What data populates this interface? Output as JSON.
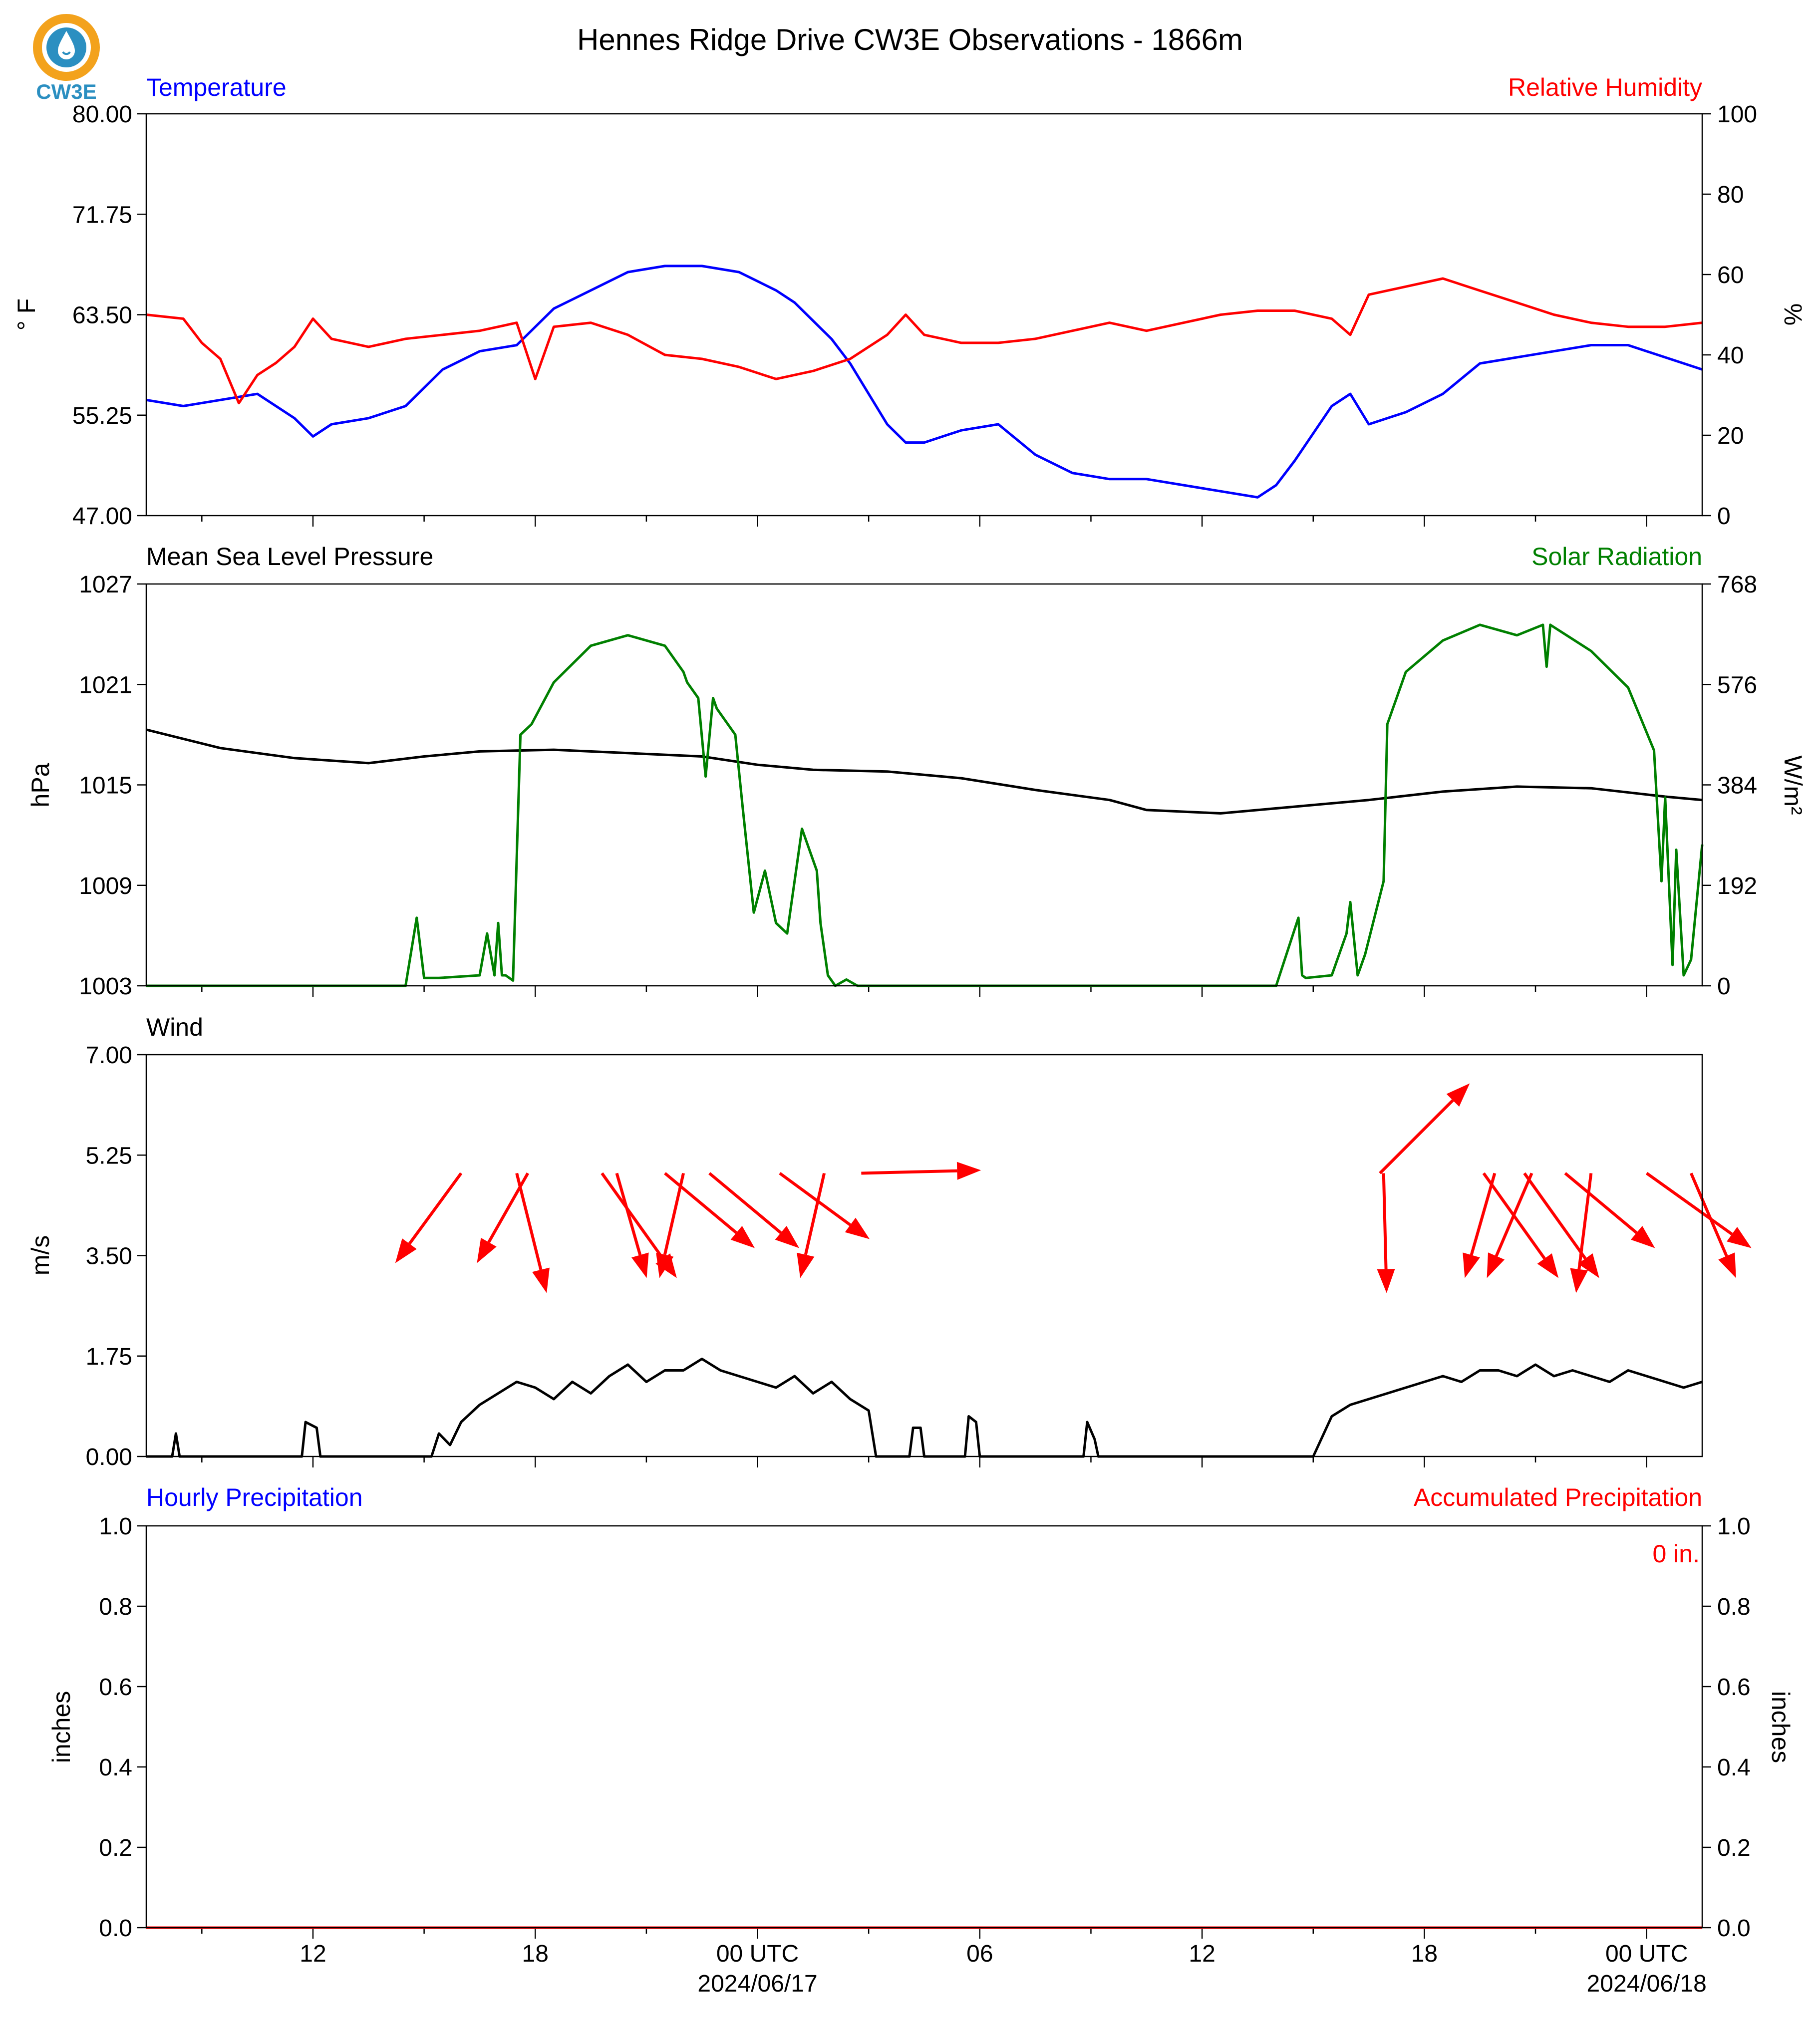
{
  "title": "Hennes Ridge Drive CW3E Observations - 1866m",
  "logo": {
    "text": "CW3E",
    "icon": "water-drop-logo-icon",
    "colors": [
      "#f3a21c",
      "#2b8fc1"
    ]
  },
  "colors": {
    "temperature": "#0000ff",
    "humidity": "#ff0000",
    "pressure": "#000000",
    "solar": "#008000",
    "wind_speed": "#000000",
    "wind_arrow": "#ff0000",
    "hourly_precip": "#0000ff",
    "accum_precip": "#ff0000"
  },
  "x_axis": {
    "time_range_hours": [
      -16.5,
      25.5
    ],
    "major_ticks": [
      -12,
      -6,
      0,
      6,
      12,
      18,
      24
    ],
    "tick_labels": [
      "12",
      "18",
      "00 UTC",
      "06",
      "12",
      "18",
      "00 UTC"
    ],
    "date_labels": [
      "2024/06/17",
      "2024/06/18"
    ],
    "date_label_hours": [
      0,
      24
    ]
  },
  "chart_data": [
    {
      "type": "line",
      "panel": "temperature_humidity",
      "title_left": "Temperature",
      "title_right": "Relative Humidity",
      "ylabel": "° F",
      "ylabel_right": "%",
      "ylim": [
        47.0,
        80.0
      ],
      "ylim_right": [
        0,
        100
      ],
      "yticks": [
        "80.00",
        "71.75",
        "63.50",
        "55.25",
        "47.00"
      ],
      "yticks_right": [
        "100",
        "80",
        "60",
        "40",
        "20",
        "0"
      ],
      "series": [
        {
          "name": "Temperature",
          "axis": "left",
          "x": [
            -16.5,
            -15.5,
            -14.5,
            -13.5,
            -12.5,
            -12,
            -11.5,
            -10.5,
            -9.5,
            -8.5,
            -7.5,
            -6.5,
            -5.5,
            -4.5,
            -3.5,
            -2.5,
            -1.5,
            -0.5,
            0.5,
            1,
            1.5,
            2,
            2.5,
            3,
            3.5,
            4,
            4.5,
            5.5,
            6.5,
            7.5,
            8.5,
            9.5,
            10.5,
            11.5,
            12.5,
            13.5,
            14,
            14.5,
            15.5,
            16,
            16.5,
            17.5,
            18.5,
            19.5,
            20.5,
            21.5,
            22.5,
            23.5,
            24.5,
            25.5
          ],
          "y": [
            56.5,
            56.0,
            56.5,
            57.0,
            55.0,
            53.5,
            54.5,
            55.0,
            56.0,
            59.0,
            60.5,
            61.0,
            64.0,
            65.5,
            67.0,
            67.5,
            67.5,
            67.0,
            65.5,
            64.5,
            63.0,
            61.5,
            59.5,
            57.0,
            54.5,
            53.0,
            53.0,
            54.0,
            54.5,
            52.0,
            50.5,
            50.0,
            50.0,
            49.5,
            49.0,
            48.5,
            49.5,
            51.5,
            56.0,
            57.0,
            54.5,
            55.5,
            57.0,
            59.5,
            60.0,
            60.5,
            61.0,
            61.0,
            60.0,
            59.0
          ]
        },
        {
          "name": "Relative Humidity",
          "axis": "right",
          "x": [
            -16.5,
            -15.5,
            -15,
            -14.5,
            -14,
            -13.5,
            -13,
            -12.5,
            -12,
            -11.5,
            -10.5,
            -9.5,
            -8.5,
            -7.5,
            -6.5,
            -6,
            -5.5,
            -4.5,
            -3.5,
            -2.5,
            -1.5,
            -0.5,
            0.5,
            1.5,
            2.5,
            3.5,
            4,
            4.5,
            5.5,
            6.5,
            7.5,
            8.5,
            9.5,
            10.5,
            11.5,
            12.5,
            13.5,
            14.5,
            15.5,
            16,
            16.5,
            17.5,
            18.5,
            19.5,
            20.5,
            21.5,
            22.5,
            23.5,
            24.5,
            25.5
          ],
          "y": [
            50,
            49,
            43,
            39,
            28,
            35,
            38,
            42,
            49,
            44,
            42,
            44,
            45,
            46,
            48,
            34,
            47,
            48,
            45,
            40,
            39,
            37,
            34,
            36,
            39,
            45,
            50,
            45,
            43,
            43,
            44,
            46,
            48,
            46,
            48,
            50,
            51,
            51,
            49,
            45,
            55,
            57,
            59,
            56,
            53,
            50,
            48,
            47,
            47,
            48
          ]
        }
      ]
    },
    {
      "type": "line",
      "panel": "pressure_solar",
      "title_left": "Mean Sea Level Pressure",
      "title_right": "Solar Radiation",
      "ylabel": "hPa",
      "ylabel_right": "W/m²",
      "ylim": [
        1003,
        1027
      ],
      "ylim_right": [
        0,
        768
      ],
      "yticks": [
        "1027",
        "1021",
        "1015",
        "1009",
        "1003"
      ],
      "yticks_right": [
        "768",
        "576",
        "384",
        "192",
        "0"
      ],
      "series": [
        {
          "name": "Mean Sea Level Pressure",
          "axis": "left",
          "x": [
            -16.5,
            -14.5,
            -12.5,
            -10.5,
            -9,
            -7.5,
            -5.5,
            -3.5,
            -1.5,
            0,
            1.5,
            3.5,
            5.5,
            7.5,
            9.5,
            10.5,
            12.5,
            14.5,
            16.5,
            18.5,
            20.5,
            22.5,
            24.5,
            25.5
          ],
          "y": [
            1018.3,
            1017.2,
            1016.6,
            1016.3,
            1016.7,
            1017.0,
            1017.1,
            1016.9,
            1016.7,
            1016.2,
            1015.9,
            1015.8,
            1015.4,
            1014.7,
            1014.1,
            1013.5,
            1013.3,
            1013.7,
            1014.1,
            1014.6,
            1014.9,
            1014.8,
            1014.3,
            1014.1
          ]
        },
        {
          "name": "Solar Radiation",
          "axis": "right",
          "x": [
            -16.5,
            -11,
            -9.5,
            -9.2,
            -9,
            -8.6,
            -7.5,
            -7.3,
            -7.1,
            -7.0,
            -6.9,
            -6.8,
            -6.6,
            -6.4,
            -6.1,
            -5.5,
            -4.5,
            -3.5,
            -2.5,
            -2,
            -1.9,
            -1.6,
            -1.4,
            -1.2,
            -1.1,
            -0.6,
            -0.4,
            -0.1,
            0.2,
            0.5,
            0.8,
            1.2,
            1.6,
            1.7,
            1.9,
            2.1,
            2.4,
            2.7,
            3.5,
            3.7,
            14,
            14.6,
            14.7,
            14.8,
            15.5,
            15.9,
            16.0,
            16.2,
            16.4,
            16.9,
            17,
            17.5,
            18.5,
            19.5,
            20.5,
            21.2,
            21.3,
            21.4,
            22.5,
            23.5,
            24.2,
            24.4,
            24.5,
            24.7,
            24.8,
            25.0,
            25.2,
            25.5
          ],
          "y": [
            0,
            0,
            0,
            130,
            15,
            15,
            20,
            100,
            20,
            120,
            20,
            20,
            10,
            480,
            500,
            580,
            650,
            670,
            650,
            600,
            580,
            550,
            400,
            550,
            530,
            480,
            340,
            140,
            220,
            120,
            100,
            300,
            220,
            120,
            20,
            0,
            12,
            0,
            0,
            0,
            0,
            130,
            20,
            15,
            20,
            100,
            160,
            20,
            60,
            200,
            500,
            600,
            660,
            690,
            670,
            690,
            610,
            690,
            640,
            570,
            450,
            200,
            360,
            40,
            260,
            20,
            50,
            270
          ]
        }
      ]
    },
    {
      "type": "line",
      "panel": "wind",
      "title_left": "Wind",
      "ylabel": "m/s",
      "ylim": [
        0.0,
        7.0
      ],
      "yticks": [
        "7.00",
        "5.25",
        "3.50",
        "1.75",
        "0.00"
      ],
      "series": [
        {
          "name": "Wind",
          "axis": "left",
          "x": [
            -16.5,
            -15.8,
            -15.7,
            -15.6,
            -12.3,
            -12.2,
            -11.9,
            -11.8,
            -8.8,
            -8.6,
            -8.3,
            -8,
            -7.5,
            -7,
            -6.5,
            -6,
            -5.5,
            -5,
            -4.5,
            -4,
            -3.5,
            -3,
            -2.5,
            -2,
            -1.5,
            -1,
            -0.5,
            0,
            0.5,
            1,
            1.5,
            2,
            2.5,
            3,
            3.2,
            4.1,
            4.2,
            4.4,
            4.5,
            5.6,
            5.7,
            5.9,
            6,
            8.8,
            8.9,
            9.1,
            9.2,
            15,
            15.5,
            16,
            16.5,
            17,
            17.5,
            18,
            18.5,
            19,
            19.5,
            20,
            20.5,
            21,
            21.5,
            22,
            22.5,
            23,
            23.5,
            24,
            24.5,
            25,
            25.5
          ],
          "y": [
            0,
            0,
            0.4,
            0,
            0,
            0.6,
            0.5,
            0,
            0,
            0.4,
            0.2,
            0.6,
            0.9,
            1.1,
            1.3,
            1.2,
            1.0,
            1.3,
            1.1,
            1.4,
            1.6,
            1.3,
            1.5,
            1.5,
            1.7,
            1.5,
            1.4,
            1.3,
            1.2,
            1.4,
            1.1,
            1.3,
            1.0,
            0.8,
            0,
            0,
            0.5,
            0.5,
            0,
            0,
            0.7,
            0.6,
            0,
            0,
            0.6,
            0.3,
            0,
            0,
            0.7,
            0.9,
            1.0,
            1.1,
            1.2,
            1.3,
            1.4,
            1.3,
            1.5,
            1.5,
            1.4,
            1.6,
            1.4,
            1.5,
            1.4,
            1.3,
            1.5,
            1.4,
            1.3,
            1.2,
            1.3
          ]
        }
      ],
      "wind_barbs": [
        {
          "x": -8.0,
          "u": -2.2,
          "v": -3.0
        },
        {
          "x": -6.5,
          "u": 1.0,
          "v": -4.0
        },
        {
          "x": -6.2,
          "u": -1.7,
          "v": -3.0
        },
        {
          "x": -4.2,
          "u": 2.5,
          "v": -3.5
        },
        {
          "x": -3.8,
          "u": 1.0,
          "v": -3.5
        },
        {
          "x": -2.5,
          "u": 3.0,
          "v": -2.5
        },
        {
          "x": -2.0,
          "u": -0.8,
          "v": -3.5
        },
        {
          "x": -1.3,
          "u": 3.0,
          "v": -2.5
        },
        {
          "x": 0.6,
          "u": 3.0,
          "v": -2.2
        },
        {
          "x": 1.8,
          "u": -0.8,
          "v": -3.5
        },
        {
          "x": 2.8,
          "u": 4.0,
          "v": 0.1
        },
        {
          "x": 16.8,
          "u": 3.0,
          "v": 3.0
        },
        {
          "x": 16.9,
          "u": 0.1,
          "v": -4.0
        },
        {
          "x": 19.6,
          "u": 2.5,
          "v": -3.5
        },
        {
          "x": 19.9,
          "u": -1.0,
          "v": -3.5
        },
        {
          "x": 20.7,
          "u": 2.5,
          "v": -3.5
        },
        {
          "x": 20.9,
          "u": -1.5,
          "v": -3.5
        },
        {
          "x": 21.8,
          "u": 3.0,
          "v": -2.5
        },
        {
          "x": 22.5,
          "u": -0.5,
          "v": -4.0
        },
        {
          "x": 24.0,
          "u": 3.5,
          "v": -2.5
        },
        {
          "x": 25.2,
          "u": 1.5,
          "v": -3.5
        }
      ]
    },
    {
      "type": "line",
      "panel": "precipitation",
      "title_left": "Hourly Precipitation",
      "title_right": "Accumulated Precipitation",
      "annotation": "0 in.",
      "ylabel": "inches",
      "ylabel_right": "inches",
      "ylim": [
        0.0,
        1.0
      ],
      "ylim_right": [
        0.0,
        1.0
      ],
      "yticks": [
        "1.0",
        "0.8",
        "0.6",
        "0.4",
        "0.2",
        "0.0"
      ],
      "yticks_right": [
        "1.0",
        "0.8",
        "0.6",
        "0.4",
        "0.2",
        "0.0"
      ],
      "series": [
        {
          "name": "Hourly Precipitation",
          "axis": "left",
          "x": [
            -16.5,
            25.5
          ],
          "y": [
            0,
            0
          ]
        },
        {
          "name": "Accumulated Precipitation",
          "axis": "right",
          "x": [
            -16.5,
            25.5
          ],
          "y": [
            0,
            0
          ]
        }
      ]
    }
  ]
}
